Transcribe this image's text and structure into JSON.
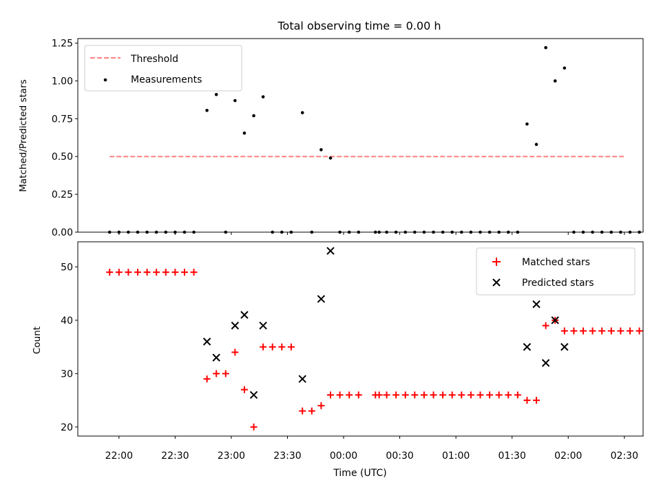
{
  "chart_data": [
    {
      "type": "scatter",
      "title": "Total observing time = 0.00 h",
      "xlabel": "",
      "ylabel": "Matched/Predicted stars",
      "x_range_minutes_from_2200": [
        -22,
        280
      ],
      "ylim": [
        0,
        1.28
      ],
      "y_ticks": [
        0.0,
        0.25,
        0.5,
        0.75,
        1.0,
        1.25
      ],
      "y_tick_labels": [
        "0.00",
        "0.25",
        "0.50",
        "0.75",
        "1.00",
        "1.25"
      ],
      "legend_position": "upper-left",
      "threshold": {
        "label": "Threshold",
        "value": 0.5,
        "x_start": -5,
        "x_end": 270,
        "color": "#ff8080"
      },
      "measurements_label": "Measurements",
      "measurements": [
        {
          "x": -5,
          "y": 0
        },
        {
          "x": 0,
          "y": 0
        },
        {
          "x": 5,
          "y": 0
        },
        {
          "x": 10,
          "y": 0
        },
        {
          "x": 15,
          "y": 0
        },
        {
          "x": 20,
          "y": 0
        },
        {
          "x": 25,
          "y": 0
        },
        {
          "x": 30,
          "y": 0
        },
        {
          "x": 35,
          "y": 0
        },
        {
          "x": 40,
          "y": 0
        },
        {
          "x": 47,
          "y": 0.805
        },
        {
          "x": 52,
          "y": 0.91
        },
        {
          "x": 57,
          "y": 0
        },
        {
          "x": 62,
          "y": 0.87
        },
        {
          "x": 67,
          "y": 0.655
        },
        {
          "x": 72,
          "y": 0.77
        },
        {
          "x": 77,
          "y": 0.895
        },
        {
          "x": 82,
          "y": 0
        },
        {
          "x": 87,
          "y": 0
        },
        {
          "x": 92,
          "y": 0
        },
        {
          "x": 98,
          "y": 0.79
        },
        {
          "x": 103,
          "y": 0
        },
        {
          "x": 108,
          "y": 0.545
        },
        {
          "x": 113,
          "y": 0.49
        },
        {
          "x": 118,
          "y": 0
        },
        {
          "x": 123,
          "y": 0
        },
        {
          "x": 128,
          "y": 0
        },
        {
          "x": 137,
          "y": 0
        },
        {
          "x": 139,
          "y": 0
        },
        {
          "x": 143,
          "y": 0
        },
        {
          "x": 148,
          "y": 0
        },
        {
          "x": 153,
          "y": 0
        },
        {
          "x": 158,
          "y": 0
        },
        {
          "x": 163,
          "y": 0
        },
        {
          "x": 168,
          "y": 0
        },
        {
          "x": 173,
          "y": 0
        },
        {
          "x": 178,
          "y": 0
        },
        {
          "x": 183,
          "y": 0
        },
        {
          "x": 188,
          "y": 0
        },
        {
          "x": 193,
          "y": 0
        },
        {
          "x": 198,
          "y": 0
        },
        {
          "x": 203,
          "y": 0
        },
        {
          "x": 208,
          "y": 0
        },
        {
          "x": 213,
          "y": 0
        },
        {
          "x": 218,
          "y": 0.715
        },
        {
          "x": 223,
          "y": 0.58
        },
        {
          "x": 228,
          "y": 1.22
        },
        {
          "x": 233,
          "y": 1.0
        },
        {
          "x": 238,
          "y": 1.085
        },
        {
          "x": 243,
          "y": 0
        },
        {
          "x": 248,
          "y": 0
        },
        {
          "x": 253,
          "y": 0
        },
        {
          "x": 258,
          "y": 0
        },
        {
          "x": 263,
          "y": 0
        },
        {
          "x": 268,
          "y": 0
        },
        {
          "x": 273,
          "y": 0
        },
        {
          "x": 278,
          "y": 0
        }
      ]
    },
    {
      "type": "scatter",
      "title": "",
      "xlabel": "Time (UTC)",
      "ylabel": "Count",
      "x_range_minutes_from_2200": [
        -22,
        280
      ],
      "ylim": [
        18.3,
        54.7
      ],
      "y_ticks": [
        20,
        30,
        40,
        50
      ],
      "y_tick_labels": [
        "20",
        "30",
        "40",
        "50"
      ],
      "x_ticks_minutes_from_2200": [
        0,
        30,
        60,
        90,
        120,
        150,
        180,
        210,
        240,
        270
      ],
      "x_tick_labels": [
        "22:00",
        "22:30",
        "23:00",
        "23:30",
        "00:00",
        "00:30",
        "01:00",
        "01:30",
        "02:00",
        "02:30"
      ],
      "legend_position": "upper-right",
      "series": [
        {
          "name": "Matched stars",
          "marker": "plus",
          "color": "#ff0000",
          "points": [
            {
              "x": -5,
              "y": 49
            },
            {
              "x": 0,
              "y": 49
            },
            {
              "x": 5,
              "y": 49
            },
            {
              "x": 10,
              "y": 49
            },
            {
              "x": 15,
              "y": 49
            },
            {
              "x": 20,
              "y": 49
            },
            {
              "x": 25,
              "y": 49
            },
            {
              "x": 30,
              "y": 49
            },
            {
              "x": 35,
              "y": 49
            },
            {
              "x": 40,
              "y": 49
            },
            {
              "x": 47,
              "y": 29
            },
            {
              "x": 52,
              "y": 30
            },
            {
              "x": 57,
              "y": 30
            },
            {
              "x": 62,
              "y": 34
            },
            {
              "x": 67,
              "y": 27
            },
            {
              "x": 72,
              "y": 20
            },
            {
              "x": 77,
              "y": 35
            },
            {
              "x": 82,
              "y": 35
            },
            {
              "x": 87,
              "y": 35
            },
            {
              "x": 92,
              "y": 35
            },
            {
              "x": 98,
              "y": 23
            },
            {
              "x": 103,
              "y": 23
            },
            {
              "x": 108,
              "y": 24
            },
            {
              "x": 113,
              "y": 26
            },
            {
              "x": 118,
              "y": 26
            },
            {
              "x": 123,
              "y": 26
            },
            {
              "x": 128,
              "y": 26
            },
            {
              "x": 137,
              "y": 26
            },
            {
              "x": 139,
              "y": 26
            },
            {
              "x": 143,
              "y": 26
            },
            {
              "x": 148,
              "y": 26
            },
            {
              "x": 153,
              "y": 26
            },
            {
              "x": 158,
              "y": 26
            },
            {
              "x": 163,
              "y": 26
            },
            {
              "x": 168,
              "y": 26
            },
            {
              "x": 173,
              "y": 26
            },
            {
              "x": 178,
              "y": 26
            },
            {
              "x": 183,
              "y": 26
            },
            {
              "x": 188,
              "y": 26
            },
            {
              "x": 193,
              "y": 26
            },
            {
              "x": 198,
              "y": 26
            },
            {
              "x": 203,
              "y": 26
            },
            {
              "x": 208,
              "y": 26
            },
            {
              "x": 213,
              "y": 26
            },
            {
              "x": 218,
              "y": 25
            },
            {
              "x": 223,
              "y": 25
            },
            {
              "x": 228,
              "y": 39
            },
            {
              "x": 233,
              "y": 40
            },
            {
              "x": 238,
              "y": 38
            },
            {
              "x": 243,
              "y": 38
            },
            {
              "x": 248,
              "y": 38
            },
            {
              "x": 253,
              "y": 38
            },
            {
              "x": 258,
              "y": 38
            },
            {
              "x": 263,
              "y": 38
            },
            {
              "x": 268,
              "y": 38
            },
            {
              "x": 273,
              "y": 38
            },
            {
              "x": 278,
              "y": 38
            }
          ]
        },
        {
          "name": "Predicted stars",
          "marker": "cross",
          "color": "#000000",
          "points": [
            {
              "x": 47,
              "y": 36
            },
            {
              "x": 52,
              "y": 33
            },
            {
              "x": 62,
              "y": 39
            },
            {
              "x": 67,
              "y": 41
            },
            {
              "x": 72,
              "y": 26
            },
            {
              "x": 77,
              "y": 39
            },
            {
              "x": 98,
              "y": 29
            },
            {
              "x": 108,
              "y": 44
            },
            {
              "x": 113,
              "y": 53
            },
            {
              "x": 218,
              "y": 35
            },
            {
              "x": 223,
              "y": 43
            },
            {
              "x": 228,
              "y": 32
            },
            {
              "x": 233,
              "y": 40
            },
            {
              "x": 238,
              "y": 35
            }
          ]
        }
      ]
    }
  ]
}
